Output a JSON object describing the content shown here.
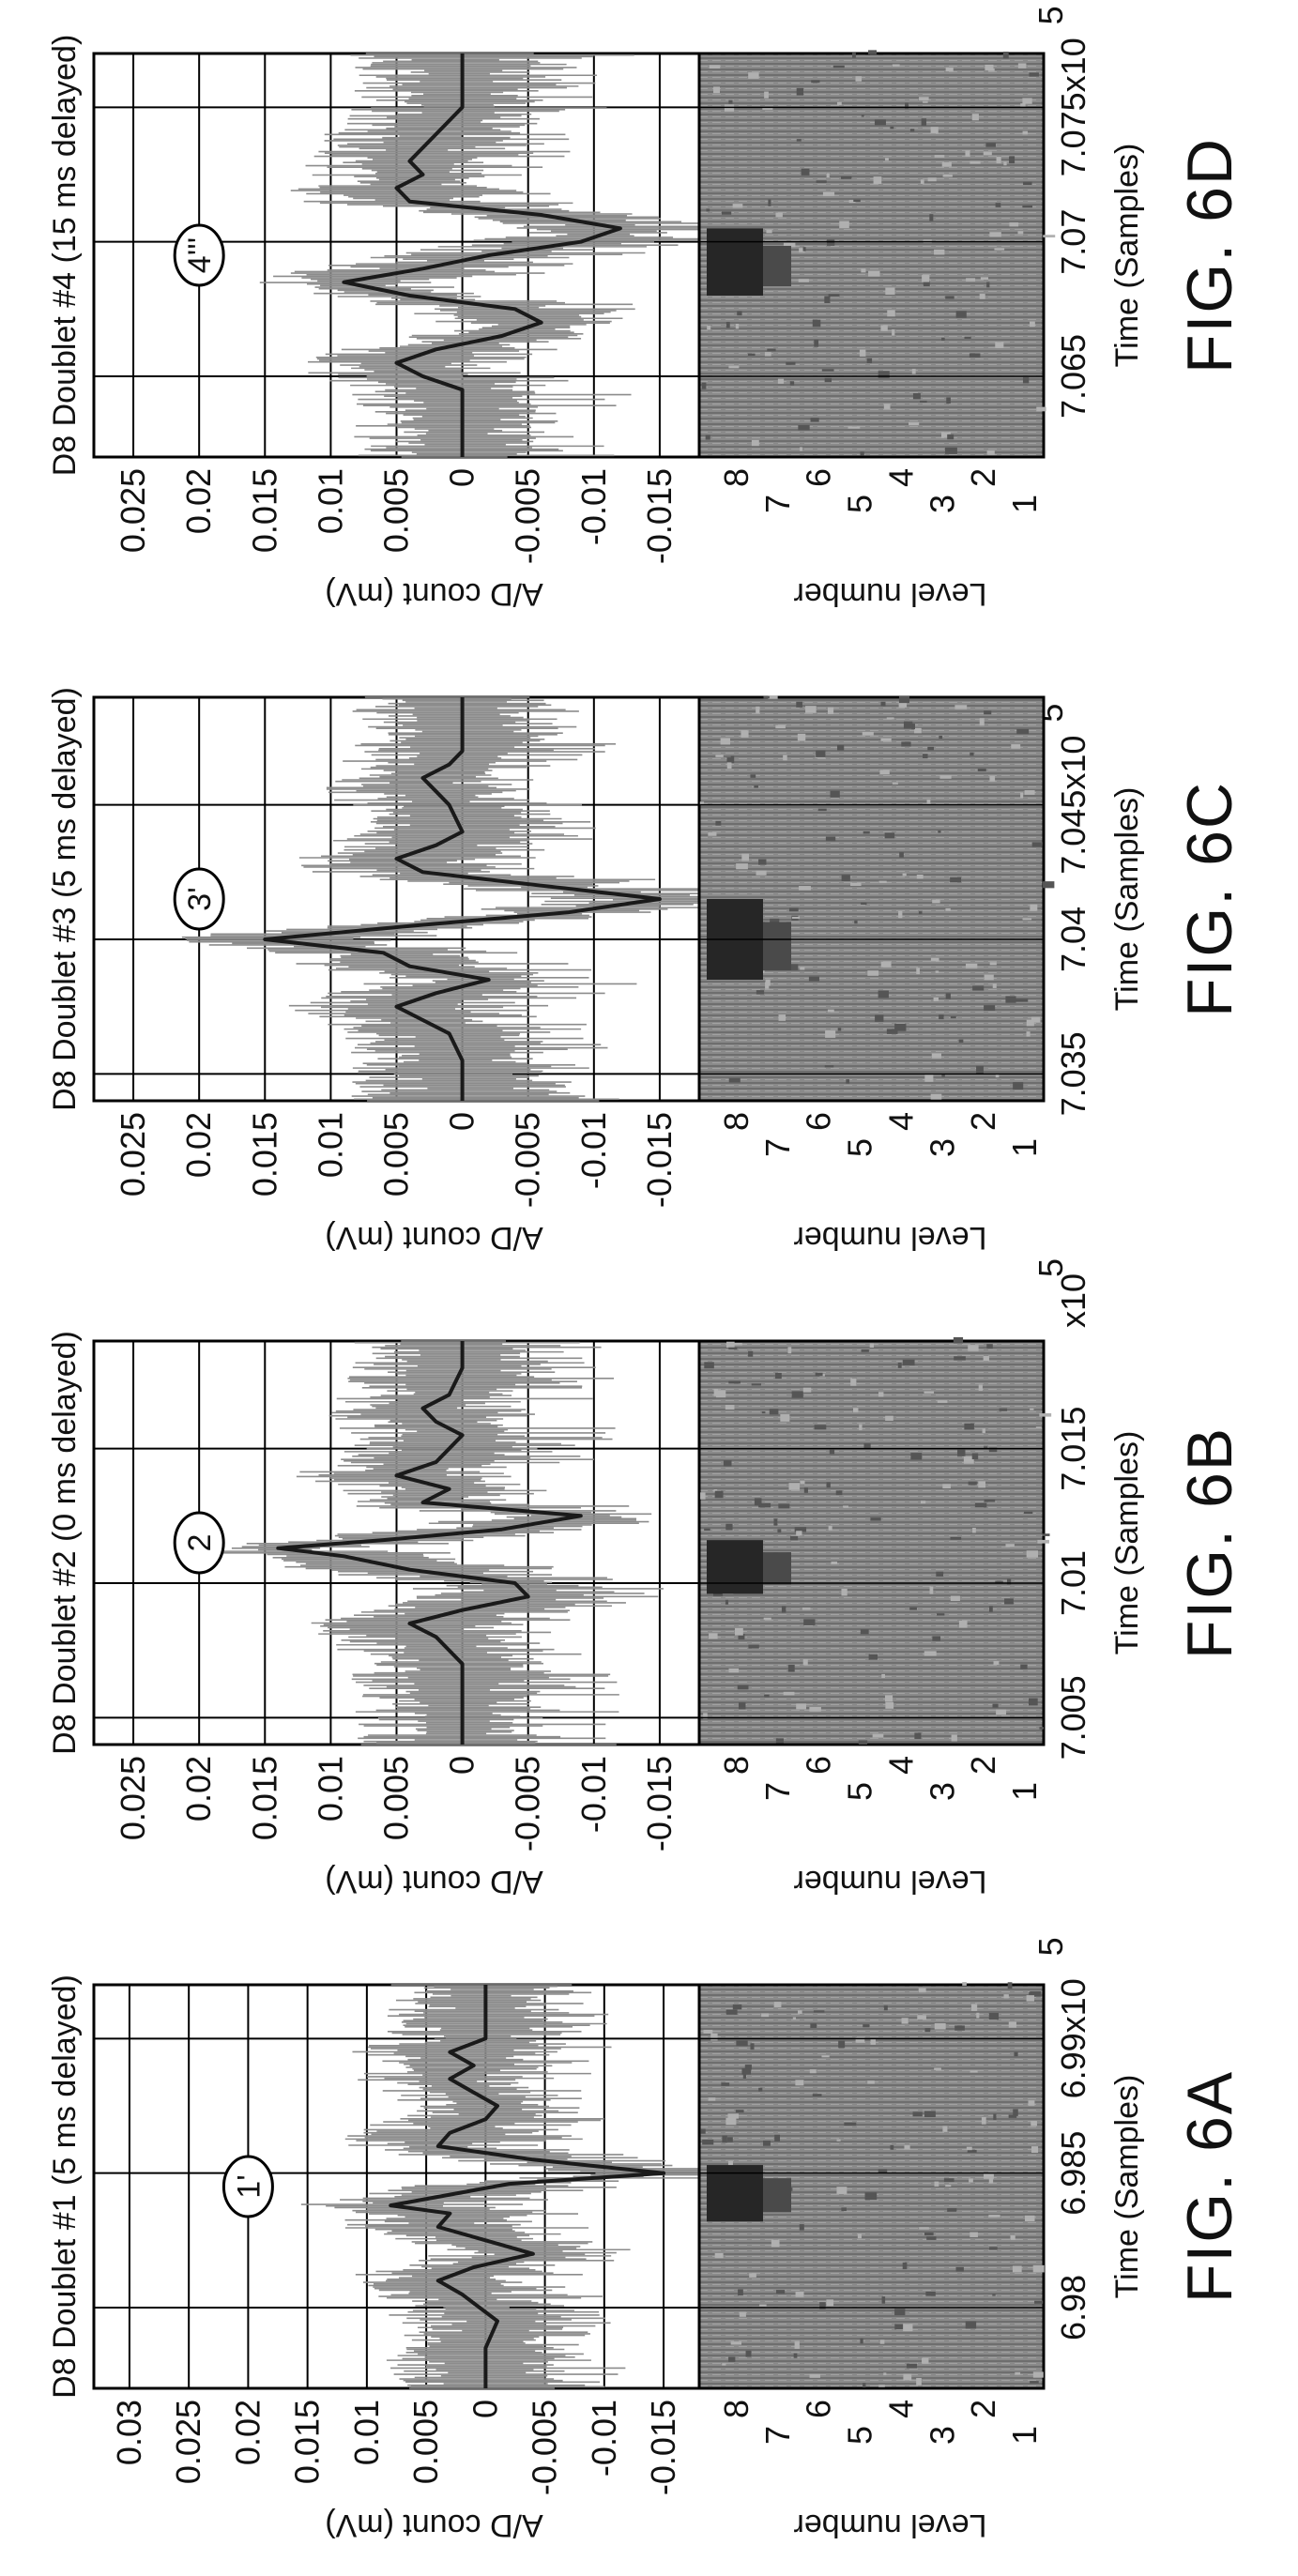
{
  "chart_data": [
    {
      "type": "line",
      "figure_label": "FIG. 6A",
      "title": "D8 Doublet #1 (5 ms delayed)",
      "ylabel": "A/D count (mV)",
      "xlabel": "Time (Samples)",
      "level_label": "Level number",
      "annotation": "1'",
      "ylim": [
        -0.018,
        0.033
      ],
      "xlim": [
        6.977,
        6.992
      ],
      "yticks": [
        0.03,
        0.025,
        0.02,
        0.015,
        0.01,
        0.005,
        0,
        -0.005,
        -0.01,
        -0.015
      ],
      "ytick_labels": [
        "0.03",
        "0.025",
        "0.02",
        "0.015",
        "0.01",
        "0.005",
        "0",
        "-0.005",
        "-0.01",
        "-0.015"
      ],
      "xticks": [
        6.98,
        6.985,
        6.99
      ],
      "xtick_labels": [
        "6.98",
        "6.985",
        "6.99x10"
      ],
      "x_exponent": "5",
      "level_ticks": [
        "8",
        "7",
        "6",
        "5",
        "4",
        "3",
        "2",
        "1"
      ],
      "series": [
        {
          "x": [
            6.977,
            6.9785,
            6.9795,
            6.9805,
            6.981,
            6.9815,
            6.982,
            6.9825,
            6.983,
            6.9835,
            6.9838,
            6.9842,
            6.9846,
            6.985,
            6.9855,
            6.986,
            6.9865,
            6.987,
            6.9875,
            6.988,
            6.9885,
            6.989,
            6.9895,
            6.99,
            6.991,
            6.992
          ],
          "y": [
            0.0,
            0.0,
            -0.001,
            0.002,
            0.004,
            0.001,
            -0.004,
            0.0,
            0.004,
            0.003,
            0.008,
            0.003,
            -0.002,
            -0.015,
            -0.004,
            0.004,
            0.003,
            0.0,
            -0.001,
            0.001,
            0.003,
            0.001,
            0.003,
            0.0,
            0.0,
            0.0
          ]
        }
      ],
      "band_x": [
        6.9832,
        6.9853
      ]
    },
    {
      "type": "line",
      "figure_label": "FIG. 6B",
      "title": "D8 Doublet #2 (0 ms delayed)",
      "ylabel": "A/D count (mV)",
      "xlabel": "Time (Samples)",
      "level_label": "Level number",
      "annotation": "2",
      "ylim": [
        -0.018,
        0.028
      ],
      "xlim": [
        7.004,
        7.019
      ],
      "yticks": [
        0.025,
        0.02,
        0.015,
        0.01,
        0.005,
        0,
        -0.005,
        -0.01,
        -0.015
      ],
      "ytick_labels": [
        "0.025",
        "0.02",
        "0.015",
        "0.01",
        "0.005",
        "0",
        "-0.005",
        "-0.01",
        "-0.015"
      ],
      "xticks": [
        7.005,
        7.01,
        7.015
      ],
      "xtick_labels": [
        "7.005",
        "7.01",
        "7.015"
      ],
      "x_exponent": "x10",
      "x_exponent_power": "5",
      "level_ticks": [
        "8",
        "7",
        "6",
        "5",
        "4",
        "3",
        "2",
        "1"
      ],
      "series": [
        {
          "x": [
            7.004,
            7.0055,
            7.007,
            7.008,
            7.0085,
            7.009,
            7.0095,
            7.01,
            7.0105,
            7.011,
            7.0113,
            7.0116,
            7.012,
            7.0125,
            7.013,
            7.0135,
            7.014,
            7.0145,
            7.015,
            7.0155,
            7.016,
            7.0165,
            7.017,
            7.018,
            7.019
          ],
          "y": [
            0.0,
            0.0,
            0.0,
            0.002,
            0.004,
            0.0,
            -0.005,
            -0.004,
            0.004,
            0.009,
            0.014,
            0.006,
            -0.003,
            -0.009,
            0.003,
            0.001,
            0.005,
            0.002,
            0.001,
            0.0,
            0.002,
            0.003,
            0.001,
            0.0,
            0.0
          ]
        }
      ],
      "band_x": [
        7.0096,
        7.0116
      ]
    },
    {
      "type": "line",
      "figure_label": "FIG. 6C",
      "title": "D8 Doublet #3 (5 ms delayed)",
      "ylabel": "A/D count (mV)",
      "xlabel": "Time (Samples)",
      "level_label": "Level number",
      "annotation": "3'",
      "ylim": [
        -0.018,
        0.028
      ],
      "xlim": [
        7.034,
        7.049
      ],
      "yticks": [
        0.025,
        0.02,
        0.015,
        0.01,
        0.005,
        0,
        -0.005,
        -0.01,
        -0.015
      ],
      "ytick_labels": [
        "0.025",
        "0.02",
        "0.015",
        "0.01",
        "0.005",
        "0",
        "-0.005",
        "-0.01",
        "-0.015"
      ],
      "xticks": [
        7.035,
        7.04,
        7.045
      ],
      "xtick_labels": [
        "7.035",
        "7.04",
        "7.045x10"
      ],
      "x_exponent": "5",
      "level_ticks": [
        "8",
        "7",
        "6",
        "5",
        "4",
        "3",
        "2",
        "1"
      ],
      "series": [
        {
          "x": [
            7.034,
            7.0355,
            7.0365,
            7.037,
            7.0375,
            7.038,
            7.0385,
            7.039,
            7.0395,
            7.04,
            7.0405,
            7.041,
            7.0415,
            7.042,
            7.0425,
            7.043,
            7.0435,
            7.044,
            7.045,
            7.0455,
            7.046,
            7.0465,
            7.047,
            7.048,
            7.049
          ],
          "y": [
            0.0,
            0.0,
            0.001,
            0.003,
            0.005,
            0.002,
            -0.002,
            0.004,
            0.006,
            0.015,
            0.004,
            -0.008,
            -0.015,
            -0.006,
            0.003,
            0.005,
            0.002,
            0.0,
            0.001,
            0.002,
            0.003,
            0.001,
            0.0,
            0.0,
            0.0
          ]
        }
      ],
      "band_x": [
        7.0385,
        7.0415
      ]
    },
    {
      "type": "line",
      "figure_label": "FIG. 6D",
      "title": "D8 Doublet #4 (15 ms delayed)",
      "ylabel": "A/D count (mV)",
      "xlabel": "Time (Samples)",
      "level_label": "Level number",
      "annotation": "4'''",
      "ylim": [
        -0.018,
        0.028
      ],
      "xlim": [
        7.062,
        7.077
      ],
      "yticks": [
        0.025,
        0.02,
        0.015,
        0.01,
        0.005,
        0,
        -0.005,
        -0.01,
        -0.015
      ],
      "ytick_labels": [
        "0.025",
        "0.02",
        "0.015",
        "0.01",
        "0.005",
        "0",
        "-0.005",
        "-0.01",
        "-0.015"
      ],
      "xticks": [
        7.065,
        7.07,
        7.075
      ],
      "xtick_labels": [
        "7.065",
        "7.07",
        "7.075x10"
      ],
      "x_exponent": "5",
      "level_ticks": [
        "8",
        "7",
        "6",
        "5",
        "4",
        "3",
        "2",
        "1"
      ],
      "series": [
        {
          "x": [
            7.062,
            7.0635,
            7.0645,
            7.065,
            7.0655,
            7.066,
            7.0665,
            7.067,
            7.0675,
            7.068,
            7.0685,
            7.069,
            7.0695,
            7.07,
            7.0705,
            7.071,
            7.0715,
            7.072,
            7.0725,
            7.073,
            7.074,
            7.075,
            7.076,
            7.077
          ],
          "y": [
            0.0,
            0.0,
            0.0,
            0.003,
            0.005,
            0.002,
            -0.003,
            -0.006,
            -0.004,
            0.004,
            0.009,
            0.003,
            -0.002,
            -0.009,
            -0.012,
            -0.006,
            0.004,
            0.005,
            0.003,
            0.004,
            0.002,
            0.0,
            0.0,
            0.0
          ]
        }
      ],
      "band_x": [
        7.068,
        7.0705
      ]
    }
  ]
}
